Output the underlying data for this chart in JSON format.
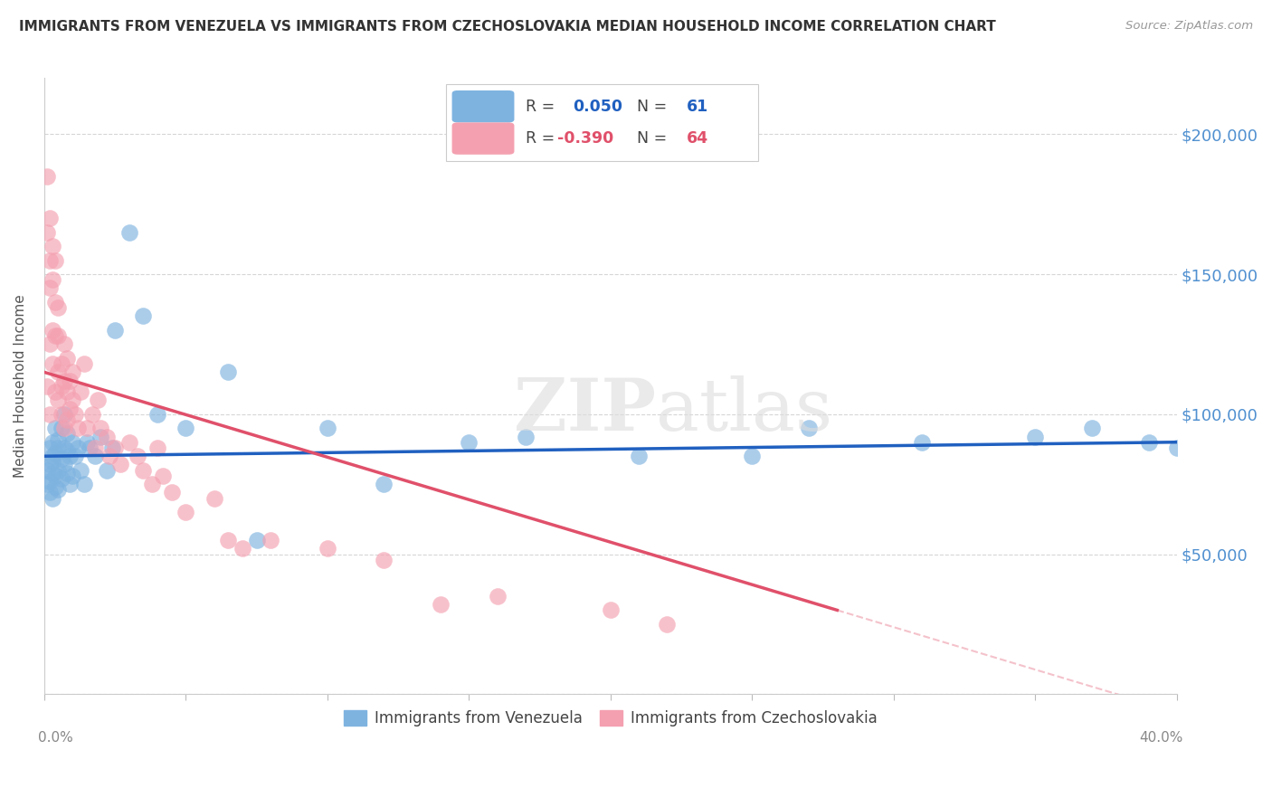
{
  "title": "IMMIGRANTS FROM VENEZUELA VS IMMIGRANTS FROM CZECHOSLOVAKIA MEDIAN HOUSEHOLD INCOME CORRELATION CHART",
  "source": "Source: ZipAtlas.com",
  "ylabel": "Median Household Income",
  "yticks": [
    0,
    50000,
    100000,
    150000,
    200000
  ],
  "ytick_labels": [
    "",
    "$50,000",
    "$100,000",
    "$150,000",
    "$200,000"
  ],
  "xlim": [
    0.0,
    0.4
  ],
  "ylim": [
    0,
    220000
  ],
  "watermark": "ZIPatlas",
  "color_venezuela": "#7EB3E0",
  "color_czechoslovakia": "#F4A0B0",
  "color_line_venezuela": "#2060C0",
  "color_line_czechoslovakia": "#E0506A",
  "background_color": "#FFFFFF",
  "venezuela_x": [
    0.001,
    0.001,
    0.002,
    0.002,
    0.002,
    0.002,
    0.003,
    0.003,
    0.003,
    0.003,
    0.003,
    0.004,
    0.004,
    0.004,
    0.004,
    0.005,
    0.005,
    0.005,
    0.005,
    0.006,
    0.006,
    0.006,
    0.007,
    0.007,
    0.007,
    0.008,
    0.008,
    0.008,
    0.009,
    0.009,
    0.01,
    0.01,
    0.011,
    0.012,
    0.013,
    0.014,
    0.015,
    0.016,
    0.018,
    0.02,
    0.022,
    0.024,
    0.025,
    0.03,
    0.035,
    0.04,
    0.05,
    0.065,
    0.075,
    0.1,
    0.12,
    0.15,
    0.17,
    0.21,
    0.25,
    0.27,
    0.31,
    0.35,
    0.37,
    0.39,
    0.4
  ],
  "venezuela_y": [
    80000,
    75000,
    82000,
    72000,
    88000,
    76000,
    85000,
    79000,
    90000,
    83000,
    70000,
    86000,
    78000,
    95000,
    74000,
    88000,
    80000,
    73000,
    91000,
    84000,
    77000,
    95000,
    88000,
    82000,
    100000,
    87000,
    79000,
    93000,
    85000,
    75000,
    90000,
    78000,
    85000,
    88000,
    80000,
    75000,
    90000,
    88000,
    85000,
    92000,
    80000,
    88000,
    130000,
    165000,
    135000,
    100000,
    95000,
    115000,
    55000,
    95000,
    75000,
    90000,
    92000,
    85000,
    85000,
    95000,
    90000,
    92000,
    95000,
    90000,
    88000
  ],
  "czechoslovakia_x": [
    0.001,
    0.001,
    0.001,
    0.002,
    0.002,
    0.002,
    0.002,
    0.002,
    0.003,
    0.003,
    0.003,
    0.003,
    0.004,
    0.004,
    0.004,
    0.004,
    0.005,
    0.005,
    0.005,
    0.005,
    0.006,
    0.006,
    0.006,
    0.007,
    0.007,
    0.007,
    0.008,
    0.008,
    0.008,
    0.009,
    0.009,
    0.01,
    0.01,
    0.011,
    0.012,
    0.013,
    0.014,
    0.015,
    0.017,
    0.018,
    0.019,
    0.02,
    0.022,
    0.023,
    0.025,
    0.027,
    0.03,
    0.033,
    0.035,
    0.038,
    0.04,
    0.042,
    0.045,
    0.05,
    0.06,
    0.065,
    0.07,
    0.08,
    0.1,
    0.12,
    0.14,
    0.16,
    0.2,
    0.22
  ],
  "czechoslovakia_y": [
    185000,
    165000,
    110000,
    170000,
    155000,
    145000,
    125000,
    100000,
    160000,
    148000,
    130000,
    118000,
    155000,
    140000,
    128000,
    108000,
    138000,
    128000,
    115000,
    105000,
    118000,
    110000,
    100000,
    125000,
    112000,
    95000,
    120000,
    108000,
    98000,
    112000,
    102000,
    115000,
    105000,
    100000,
    95000,
    108000,
    118000,
    95000,
    100000,
    88000,
    105000,
    95000,
    92000,
    85000,
    88000,
    82000,
    90000,
    85000,
    80000,
    75000,
    88000,
    78000,
    72000,
    65000,
    70000,
    55000,
    52000,
    55000,
    52000,
    48000,
    32000,
    35000,
    30000,
    25000
  ]
}
